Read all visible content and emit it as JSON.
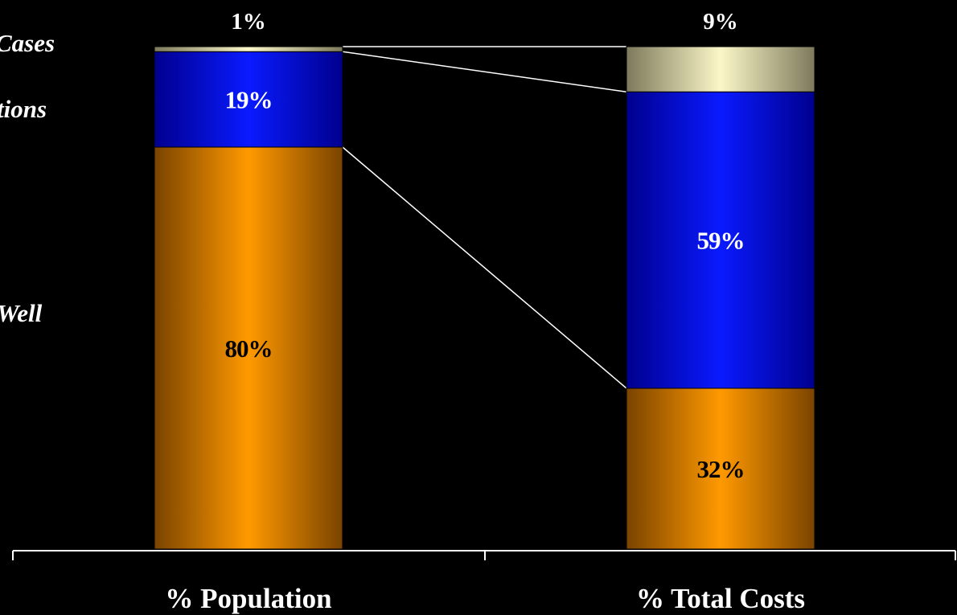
{
  "chart_data": {
    "type": "bar",
    "stacked": true,
    "normalized": true,
    "categories": [
      "% Population",
      "% Total Costs"
    ],
    "series": [
      {
        "name": "Well",
        "values": [
          80,
          32
        ],
        "labels": [
          "80%",
          "32%"
        ],
        "label_color": "#000000"
      },
      {
        "name": "…tions",
        "values": [
          19,
          59
        ],
        "labels": [
          "19%",
          "59%"
        ],
        "label_color": "#ffffff"
      },
      {
        "name": "…Cases",
        "values": [
          1,
          9
        ],
        "labels": [
          "1%",
          "9%"
        ],
        "label_color": "#ffffff"
      }
    ],
    "legend_fragments": [
      "Cases",
      "tions",
      "Well"
    ],
    "ylim": [
      0,
      100
    ],
    "grid": false,
    "connectors": true,
    "legend": "left, partially cropped"
  },
  "colors": {
    "background": "#000000",
    "orange": "#ff9900",
    "orange_dark": "#7a4300",
    "blue": "#0a1aff",
    "blue_dark": "#00008e",
    "cream": "#fbf7c8",
    "cream_dark": "#7d7a5c",
    "text": "#ffffff",
    "axis": "#ffffff"
  }
}
